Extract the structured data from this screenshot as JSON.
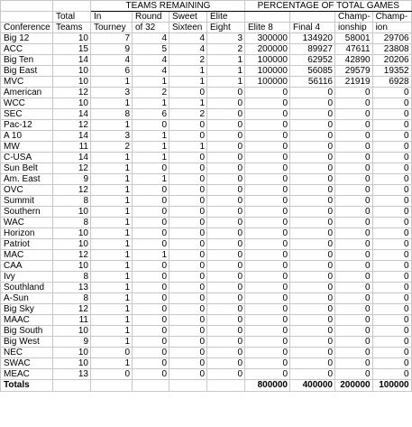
{
  "header": {
    "group_teams": "TEAMS REMAINING",
    "group_pct": "PERCENTAGE OF TOTAL GAMES",
    "top": [
      "",
      "Total",
      "In",
      "Round",
      "Sweet",
      "Elite",
      "",
      "",
      "Champ-",
      "Champ-"
    ],
    "bottom": [
      "Conference",
      "Teams",
      "Tourney",
      "of 32",
      "Sixteen",
      "Eight",
      "Elite 8",
      "Final 4",
      "ionship",
      "ion"
    ]
  },
  "rows": [
    [
      "Big 12",
      "10",
      "7",
      "4",
      "4",
      "3",
      "300000",
      "134920",
      "58001",
      "29706"
    ],
    [
      "ACC",
      "15",
      "9",
      "5",
      "4",
      "2",
      "200000",
      "89927",
      "47611",
      "23808"
    ],
    [
      "Big Ten",
      "14",
      "4",
      "4",
      "2",
      "1",
      "100000",
      "62952",
      "42890",
      "20206"
    ],
    [
      "Big East",
      "10",
      "6",
      "4",
      "1",
      "1",
      "100000",
      "56085",
      "29579",
      "19352"
    ],
    [
      "MVC",
      "10",
      "1",
      "1",
      "1",
      "1",
      "100000",
      "56116",
      "21919",
      "6928"
    ],
    [
      "American",
      "12",
      "3",
      "2",
      "0",
      "0",
      "0",
      "0",
      "0",
      "0"
    ],
    [
      "WCC",
      "10",
      "1",
      "1",
      "1",
      "0",
      "0",
      "0",
      "0",
      "0"
    ],
    [
      "SEC",
      "14",
      "8",
      "6",
      "2",
      "0",
      "0",
      "0",
      "0",
      "0"
    ],
    [
      "Pac-12",
      "12",
      "1",
      "0",
      "0",
      "0",
      "0",
      "0",
      "0",
      "0"
    ],
    [
      "A 10",
      "14",
      "3",
      "1",
      "0",
      "0",
      "0",
      "0",
      "0",
      "0"
    ],
    [
      "MW",
      "11",
      "2",
      "1",
      "1",
      "0",
      "0",
      "0",
      "0",
      "0"
    ],
    [
      "C-USA",
      "14",
      "1",
      "1",
      "0",
      "0",
      "0",
      "0",
      "0",
      "0"
    ],
    [
      "Sun Belt",
      "12",
      "1",
      "0",
      "0",
      "0",
      "0",
      "0",
      "0",
      "0"
    ],
    [
      "Am. East",
      "9",
      "1",
      "1",
      "0",
      "0",
      "0",
      "0",
      "0",
      "0"
    ],
    [
      "OVC",
      "12",
      "1",
      "0",
      "0",
      "0",
      "0",
      "0",
      "0",
      "0"
    ],
    [
      "Summit",
      "8",
      "1",
      "0",
      "0",
      "0",
      "0",
      "0",
      "0",
      "0"
    ],
    [
      "Southern",
      "10",
      "1",
      "0",
      "0",
      "0",
      "0",
      "0",
      "0",
      "0"
    ],
    [
      "WAC",
      "8",
      "1",
      "0",
      "0",
      "0",
      "0",
      "0",
      "0",
      "0"
    ],
    [
      "Horizon",
      "10",
      "1",
      "0",
      "0",
      "0",
      "0",
      "0",
      "0",
      "0"
    ],
    [
      "Patriot",
      "10",
      "1",
      "0",
      "0",
      "0",
      "0",
      "0",
      "0",
      "0"
    ],
    [
      "MAC",
      "12",
      "1",
      "1",
      "0",
      "0",
      "0",
      "0",
      "0",
      "0"
    ],
    [
      "CAA",
      "10",
      "1",
      "0",
      "0",
      "0",
      "0",
      "0",
      "0",
      "0"
    ],
    [
      "Ivy",
      "8",
      "1",
      "0",
      "0",
      "0",
      "0",
      "0",
      "0",
      "0"
    ],
    [
      "Southland",
      "13",
      "1",
      "0",
      "0",
      "0",
      "0",
      "0",
      "0",
      "0"
    ],
    [
      "A-Sun",
      "8",
      "1",
      "0",
      "0",
      "0",
      "0",
      "0",
      "0",
      "0"
    ],
    [
      "Big Sky",
      "12",
      "1",
      "0",
      "0",
      "0",
      "0",
      "0",
      "0",
      "0"
    ],
    [
      "MAAC",
      "11",
      "1",
      "0",
      "0",
      "0",
      "0",
      "0",
      "0",
      "0"
    ],
    [
      "Big South",
      "10",
      "1",
      "0",
      "0",
      "0",
      "0",
      "0",
      "0",
      "0"
    ],
    [
      "Big West",
      "9",
      "1",
      "0",
      "0",
      "0",
      "0",
      "0",
      "0",
      "0"
    ],
    [
      "NEC",
      "10",
      "0",
      "0",
      "0",
      "0",
      "0",
      "0",
      "0",
      "0"
    ],
    [
      "SWAC",
      "10",
      "1",
      "0",
      "0",
      "0",
      "0",
      "0",
      "0",
      "0"
    ],
    [
      "MEAC",
      "13",
      "0",
      "0",
      "0",
      "0",
      "0",
      "0",
      "0",
      "0"
    ]
  ],
  "totals": {
    "label": "Totals",
    "elite8": "800000",
    "final4": "400000",
    "championship": "200000",
    "champion": "100000"
  }
}
